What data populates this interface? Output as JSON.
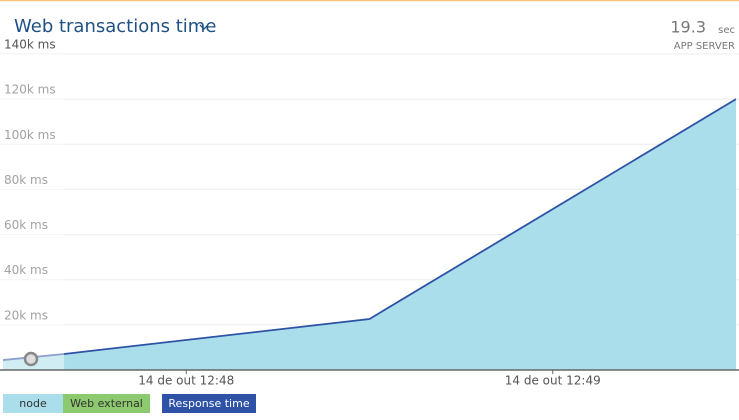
{
  "chart_data": {
    "type": "area",
    "title": "Web transactions time",
    "summary": {
      "value": "19.3",
      "unit": "sec",
      "label": "APP SERVER"
    },
    "x": [
      "12:47:30",
      "12:47:40",
      "12:48:30",
      "12:49:30"
    ],
    "xlim": [
      "12:47:30",
      "12:49:30"
    ],
    "xticks": [
      {
        "value": "12:48:00",
        "label": "14 de out 12:48"
      },
      {
        "value": "12:49:00",
        "label": "14 de out 12:49"
      }
    ],
    "ylim": [
      0,
      140000
    ],
    "yticks": [
      {
        "value": 20000,
        "label": "20k ms"
      },
      {
        "value": 40000,
        "label": "40k ms"
      },
      {
        "value": 60000,
        "label": "60k ms"
      },
      {
        "value": 80000,
        "label": "80k ms"
      },
      {
        "value": 100000,
        "label": "100k ms"
      },
      {
        "value": 120000,
        "label": "120k ms"
      },
      {
        "value": 140000,
        "label": "140k ms"
      }
    ],
    "grid": true,
    "series": [
      {
        "name": "node",
        "color": "#aadeea",
        "kind": "area",
        "values": [
          4400,
          7100,
          22600,
          120000
        ]
      },
      {
        "name": "Web external",
        "color": "#8dc96e",
        "kind": "area",
        "values": [
          0,
          0,
          0,
          0
        ]
      },
      {
        "name": "Response time",
        "color": "#2d52a6",
        "kind": "line",
        "values": [
          4400,
          7100,
          22600,
          120000
        ]
      }
    ]
  }
}
